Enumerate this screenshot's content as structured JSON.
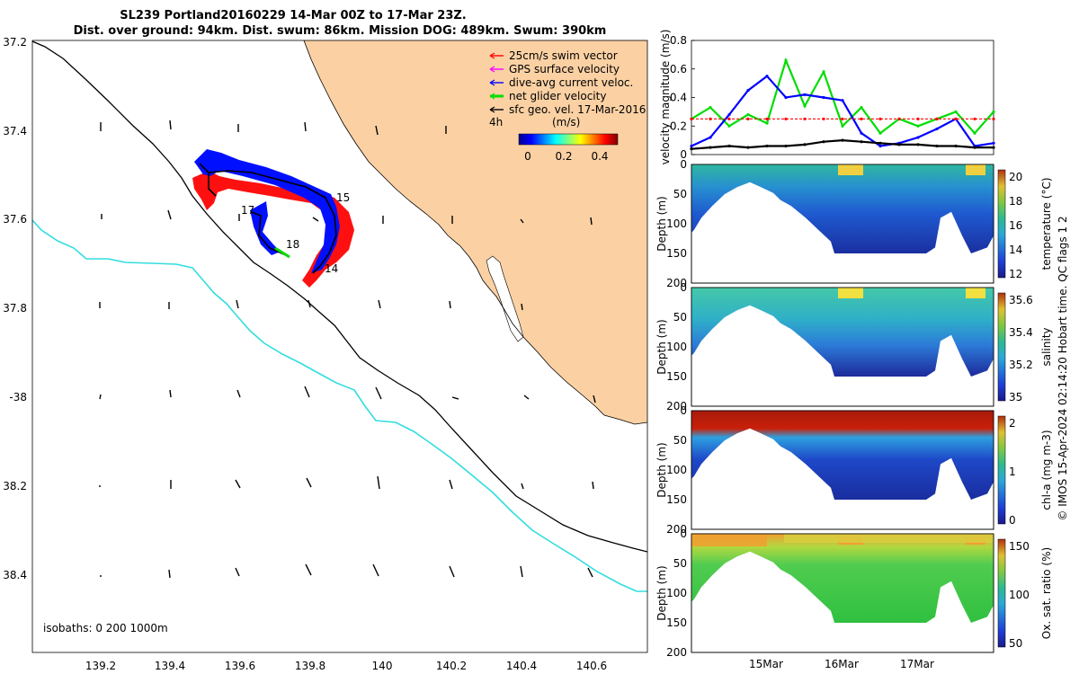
{
  "title_line1": "SL239 Portland20160229 14-Mar 00Z to 17-Mar 23Z.",
  "title_line2": "Dist. over ground: 94km. Dist. swum: 86km. Mission DOG: 489km. Swum: 390km",
  "colors": {
    "land": "#fbd1a4",
    "coast": "#000000",
    "isobath_1000": "#32dde0",
    "swim_vector": "#ff0000",
    "gps_velocity": "#ff00ff",
    "dive_avg": "#0000ff",
    "net_glider": "#00dd00",
    "sfc_geo": "#000000"
  },
  "legend": {
    "items": [
      {
        "label": "25cm/s swim vector",
        "color": "#ff0000"
      },
      {
        "label": "GPS surface velocity",
        "color": "#ff00ff"
      },
      {
        "label": "dive-avg current veloc.",
        "color": "#0000ff"
      },
      {
        "label": "net glider velocity",
        "color": "#00dd00"
      },
      {
        "label": "sfc geo. vel. 17-Mar-2016",
        "color": "#000000"
      }
    ],
    "interval": "4h",
    "speed_unit": "(m/s)",
    "speed_ticks": [
      "0",
      "0.2",
      "0.4"
    ]
  },
  "map": {
    "isobaths_label": "isobaths: 0   200  1000m",
    "track_labels": [
      "15",
      "17",
      "18",
      "14"
    ],
    "lat_ticks": [
      "37.2",
      "37.4",
      "37.6",
      "37.8",
      "-38",
      "38.2",
      "38.4"
    ],
    "lon_ticks": [
      "139.2",
      "139.4",
      "139.6",
      "139.8",
      "140",
      "140.2",
      "140.4",
      "140.6"
    ]
  },
  "panels": [
    {
      "ylabel": "velocity magnitude (m/s)",
      "yticks": [
        "0",
        "0.2",
        "0.4",
        "0.6",
        "0.8"
      ]
    },
    {
      "ylabel": "Depth (m)",
      "cblabel": "temperature (°C)",
      "cbticks": [
        "12",
        "14",
        "16",
        "18",
        "20"
      ]
    },
    {
      "ylabel": "Depth (m)",
      "cblabel": "salinity",
      "cbticks": [
        "35",
        "35.2",
        "35.4",
        "35.6"
      ]
    },
    {
      "ylabel": "Depth (m)",
      "cblabel": "chl-a (mg m-3)",
      "cbticks": [
        "0",
        "1",
        "2"
      ]
    },
    {
      "ylabel": "Depth (m)",
      "cblabel": "Ox. sat. ratio (%)",
      "cbticks": [
        "50",
        "100",
        "150"
      ]
    }
  ],
  "depth_ticks": [
    "0",
    "50",
    "100",
    "150",
    "200"
  ],
  "time_ticks": [
    "15Mar",
    "16Mar",
    "17Mar"
  ],
  "side_note": "© IMOS 15-Apr-2024 02:14:20 Hobart time. QC flags 1  2",
  "chart_data": {
    "type": "line",
    "title": "",
    "xlabel": "",
    "ylabel": "velocity magnitude (m/s)",
    "ylim": [
      0,
      0.8
    ],
    "x": [
      "14-Mar 00Z",
      "14-Mar 06Z",
      "14-Mar 12Z",
      "14-Mar 18Z",
      "15-Mar 00Z",
      "15-Mar 06Z",
      "15-Mar 12Z",
      "15-Mar 18Z",
      "16-Mar 00Z",
      "16-Mar 06Z",
      "16-Mar 12Z",
      "16-Mar 18Z",
      "17-Mar 00Z",
      "17-Mar 06Z",
      "17-Mar 12Z",
      "17-Mar 18Z",
      "17-Mar 23Z"
    ],
    "series": [
      {
        "name": "net glider velocity",
        "color": "#00dd00",
        "values": [
          0.25,
          0.33,
          0.2,
          0.28,
          0.22,
          0.66,
          0.34,
          0.58,
          0.2,
          0.33,
          0.15,
          0.25,
          0.2,
          0.25,
          0.3,
          0.15,
          0.3
        ]
      },
      {
        "name": "dive-avg current veloc.",
        "color": "#0000ff",
        "values": [
          0.06,
          0.12,
          0.28,
          0.45,
          0.55,
          0.4,
          0.42,
          0.4,
          0.38,
          0.15,
          0.06,
          0.08,
          0.12,
          0.18,
          0.25,
          0.06,
          0.08
        ]
      },
      {
        "name": "25cm/s swim vector",
        "color": "#ff0000",
        "values": [
          0.25,
          0.25,
          0.25,
          0.25,
          0.25,
          0.25,
          0.25,
          0.25,
          0.25,
          0.25,
          0.25,
          0.25,
          0.25,
          0.25,
          0.25,
          0.25,
          0.25
        ]
      },
      {
        "name": "sfc geo. vel. 17-Mar-2016",
        "color": "#000000",
        "values": [
          0.04,
          0.05,
          0.06,
          0.05,
          0.06,
          0.06,
          0.07,
          0.09,
          0.1,
          0.09,
          0.08,
          0.07,
          0.07,
          0.06,
          0.06,
          0.05,
          0.05
        ]
      }
    ]
  }
}
